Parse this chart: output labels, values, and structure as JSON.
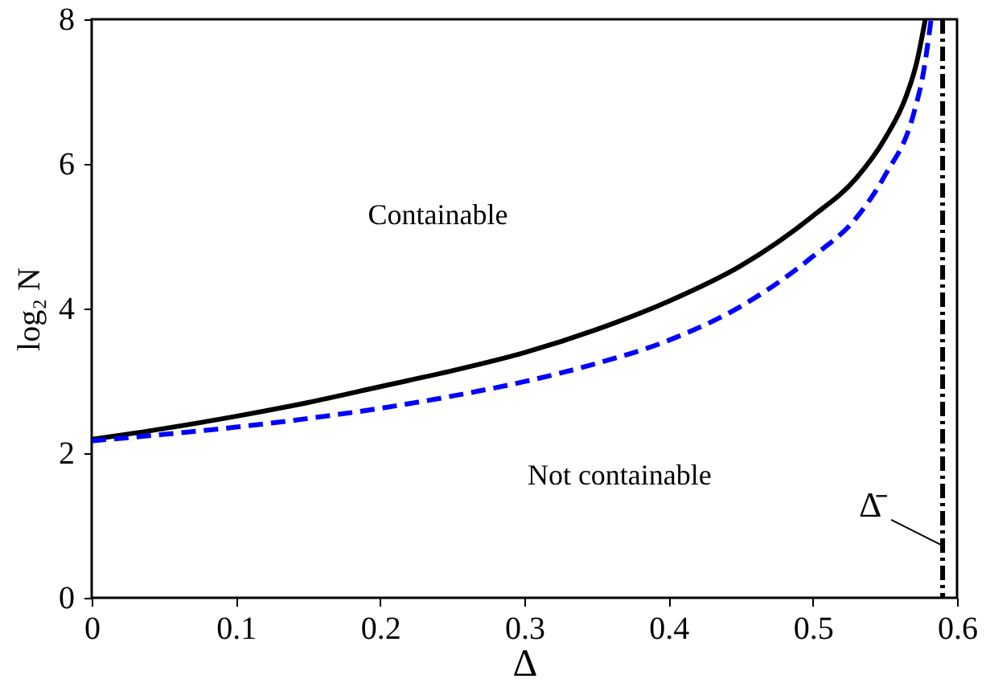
{
  "chart_data": {
    "type": "line",
    "xlabel": "Δ",
    "ylabel": "log₂ N",
    "series": [
      {
        "color": "#000000",
        "line_style": "solid",
        "x": [
          0,
          0.05,
          0.1,
          0.15,
          0.2,
          0.25,
          0.3,
          0.35,
          0.4,
          0.45,
          0.5,
          0.53,
          0.55,
          0.565,
          0.572,
          0.578
        ],
        "values": [
          2.19,
          2.34,
          2.51,
          2.7,
          2.92,
          3.14,
          3.39,
          3.71,
          4.1,
          4.59,
          5.28,
          5.8,
          6.35,
          6.95,
          7.4,
          8
        ]
      },
      {
        "color": "#0000ff",
        "line_style": "dashed",
        "x": [
          0,
          0.05,
          0.1,
          0.15,
          0.2,
          0.25,
          0.3,
          0.35,
          0.4,
          0.45,
          0.5,
          0.53,
          0.55,
          0.57,
          0.577,
          0.582
        ],
        "values": [
          2.17,
          2.26,
          2.36,
          2.48,
          2.62,
          2.79,
          2.99,
          3.24,
          3.56,
          4.03,
          4.72,
          5.25,
          5.84,
          6.7,
          7.3,
          8
        ]
      }
    ],
    "xlim": [
      0,
      0.6
    ],
    "ylim": [
      0,
      8
    ],
    "xticks": [
      0,
      0.1,
      0.2,
      0.3,
      0.4,
      0.5,
      0.6
    ],
    "yticks": [
      0,
      2,
      4,
      6,
      8
    ],
    "ref_lines": [
      {
        "axis": "x",
        "value": 0.59,
        "label": "Δ̄",
        "color": "#000000",
        "line_style": "dashdot"
      }
    ],
    "annotations": [
      "Containable",
      "Not containable"
    ]
  }
}
